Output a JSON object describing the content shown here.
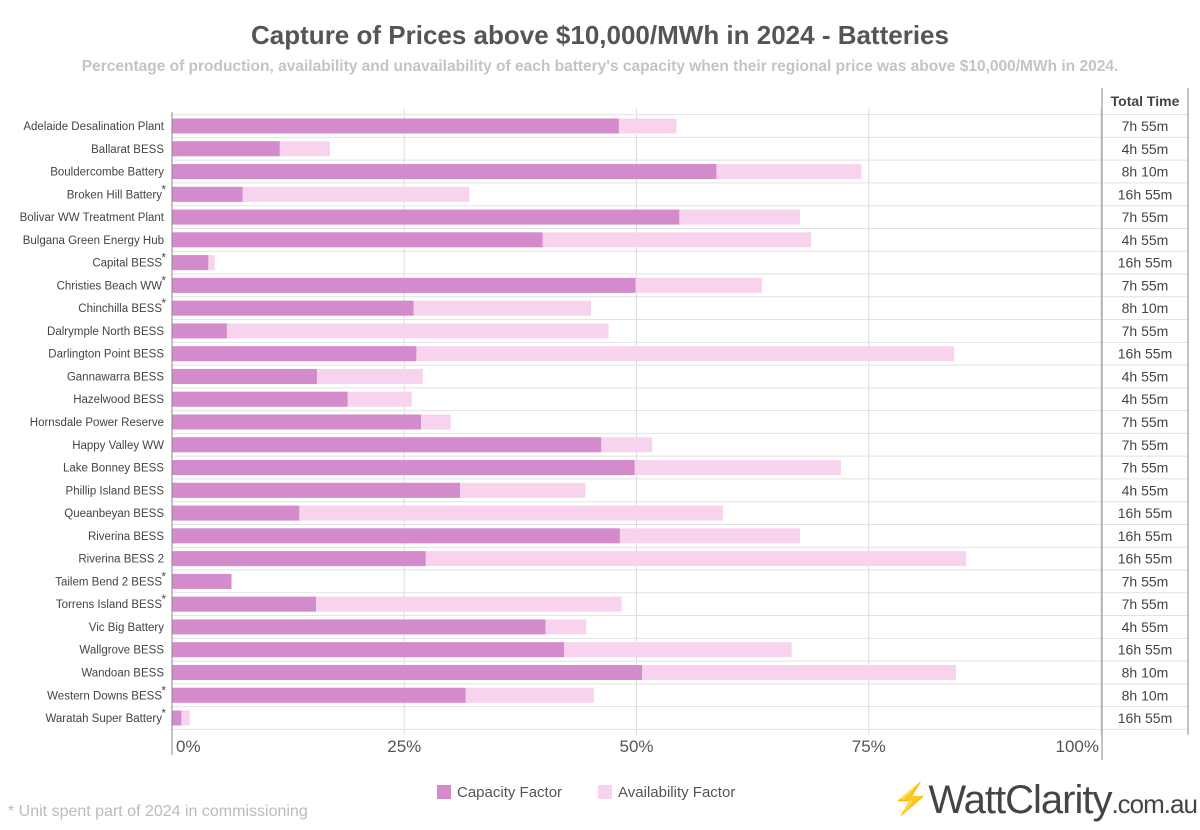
{
  "chart_data": {
    "type": "bar",
    "orientation": "horizontal",
    "stacked_overlay": true,
    "title": "Capture of Prices above $10,000/MWh in 2024 - Batteries",
    "subtitle": "Percentage of production, availability and unavailability of each battery's capacity when their regional price was above $10,000/MWh in 2024.",
    "xlim": [
      0,
      100
    ],
    "x_ticks": [
      "0%",
      "25%",
      "50%",
      "75%",
      "100%"
    ],
    "grid": true,
    "legend_position": "bottom",
    "table_header": "Total Time",
    "categories": [
      "Adelaide Desalination Plant",
      "Ballarat BESS",
      "Bouldercombe Battery",
      "Broken Hill Battery*",
      "Bolivar WW Treatment Plant",
      "Bulgana Green Energy Hub",
      "Capital BESS*",
      "Christies Beach WW*",
      "Chinchilla BESS*",
      "Dalrymple North BESS",
      "Darlington Point BESS",
      "Gannawarra BESS",
      "Hazelwood BESS",
      "Hornsdale Power Reserve",
      "Happy Valley WW",
      "Lake Bonney BESS",
      "Phillip Island BESS",
      "Queanbeyan BESS",
      "Riverina BESS",
      "Riverina BESS 2",
      "Tailem Bend 2 BESS*",
      "Torrens Island BESS*",
      "Vic Big Battery",
      "Wallgrove BESS",
      "Wandoan BESS",
      "Western Downs BESS*",
      "Waratah Super Battery*"
    ],
    "series": [
      {
        "name": "Capacity Factor",
        "color": "#d48bcc",
        "values": [
          48.1,
          11.6,
          58.6,
          7.6,
          54.6,
          39.9,
          3.9,
          49.9,
          26.0,
          5.9,
          26.3,
          15.6,
          18.9,
          26.8,
          46.2,
          49.8,
          31.0,
          13.7,
          48.2,
          27.3,
          6.4,
          15.5,
          40.2,
          42.2,
          50.6,
          31.6,
          1.0
        ]
      },
      {
        "name": "Availability Factor",
        "color": "#f7d3ee",
        "values": [
          54.3,
          17.0,
          74.2,
          32.0,
          67.6,
          68.8,
          4.6,
          63.5,
          45.1,
          47.0,
          84.2,
          27.0,
          25.8,
          30.0,
          51.7,
          72.0,
          44.5,
          59.3,
          67.6,
          85.5,
          6.4,
          48.4,
          44.6,
          66.7,
          84.4,
          45.4,
          1.9
        ]
      }
    ],
    "total_time": [
      "7h 55m",
      "4h 55m",
      "8h 10m",
      "16h 55m",
      "7h 55m",
      "4h 55m",
      "16h 55m",
      "7h 55m",
      "8h 10m",
      "7h 55m",
      "16h 55m",
      "4h 55m",
      "4h 55m",
      "7h 55m",
      "7h 55m",
      "7h 55m",
      "4h 55m",
      "16h 55m",
      "16h 55m",
      "16h 55m",
      "7h 55m",
      "7h 55m",
      "4h 55m",
      "16h 55m",
      "8h 10m",
      "8h 10m",
      "16h 55m"
    ]
  },
  "footnote": "* Unit spent part of 2024 in commissioning",
  "logo": {
    "text": "WattClarity",
    "suffix": ".com.au",
    "icon": "lightbulb-bolt-icon"
  }
}
